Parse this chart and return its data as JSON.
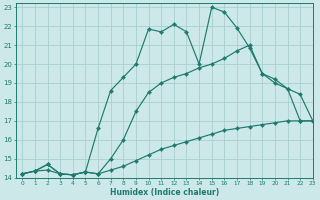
{
  "xlabel": "Humidex (Indice chaleur)",
  "bg_color": "#cde8e8",
  "line_color": "#1e7a6e",
  "grid_color": "#aacfcf",
  "xlim": [
    -0.5,
    23
  ],
  "ylim": [
    14,
    23.2
  ],
  "xticks": [
    0,
    1,
    2,
    3,
    4,
    5,
    6,
    7,
    8,
    9,
    10,
    11,
    12,
    13,
    14,
    15,
    16,
    17,
    18,
    19,
    20,
    21,
    22,
    23
  ],
  "yticks": [
    14,
    15,
    16,
    17,
    18,
    19,
    20,
    21,
    22,
    23
  ],
  "line1_x": [
    0,
    1,
    2,
    3,
    4,
    5,
    6,
    7,
    8,
    9,
    10,
    11,
    12,
    13,
    14,
    15,
    16,
    17,
    18,
    19,
    20,
    21,
    22,
    23
  ],
  "line1_y": [
    14.2,
    14.35,
    14.7,
    14.2,
    14.15,
    14.3,
    16.6,
    18.6,
    19.3,
    20.0,
    21.85,
    21.7,
    22.1,
    21.7,
    20.0,
    23.0,
    22.75,
    21.9,
    20.85,
    19.5,
    19.0,
    18.7,
    17.0,
    17.0
  ],
  "line2_x": [
    0,
    1,
    2,
    3,
    4,
    5,
    6,
    7,
    8,
    9,
    10,
    11,
    12,
    13,
    14,
    15,
    16,
    17,
    18,
    19,
    20,
    21,
    22,
    23
  ],
  "line2_y": [
    14.2,
    14.35,
    14.7,
    14.2,
    14.15,
    14.3,
    14.2,
    15.0,
    16.0,
    17.5,
    18.5,
    19.0,
    19.3,
    19.5,
    19.8,
    20.0,
    20.3,
    20.7,
    21.0,
    19.5,
    19.2,
    18.7,
    18.4,
    17.0
  ],
  "line3_x": [
    0,
    1,
    2,
    3,
    4,
    5,
    6,
    7,
    8,
    9,
    10,
    11,
    12,
    13,
    14,
    15,
    16,
    17,
    18,
    19,
    20,
    21,
    22,
    23
  ],
  "line3_y": [
    14.2,
    14.35,
    14.4,
    14.2,
    14.15,
    14.3,
    14.2,
    14.4,
    14.6,
    14.9,
    15.2,
    15.5,
    15.7,
    15.9,
    16.1,
    16.3,
    16.5,
    16.6,
    16.7,
    16.8,
    16.9,
    17.0,
    17.0,
    17.0
  ]
}
